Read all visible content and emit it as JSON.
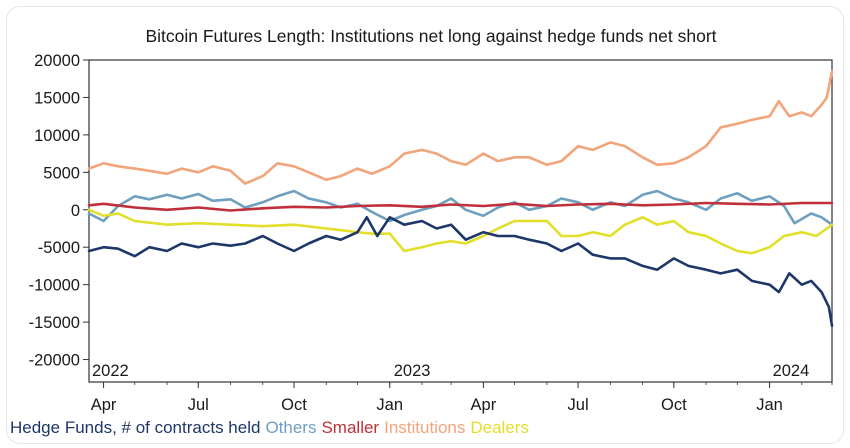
{
  "chart_data": {
    "type": "line",
    "title": "Bitcoin Futures Length: Institutions net long against hedge funds net short",
    "x_month_ticks": [
      "Apr",
      "Jul",
      "Oct",
      "Jan",
      "Apr",
      "Jul",
      "Oct",
      "Jan"
    ],
    "x_year_labels": [
      "2022",
      "2023",
      "2024"
    ],
    "x_range": [
      "2022-03-18",
      "2024-03-01"
    ],
    "y_ticks": [
      20000,
      15000,
      10000,
      5000,
      0,
      -5000,
      -10000,
      -15000,
      -20000
    ],
    "ylim": [
      -23000,
      20000
    ],
    "grid": false,
    "legend_position": "bottom",
    "legend_prefix": "Hedge Funds, # of contracts held",
    "series": [
      {
        "name": "Others",
        "color": "#6f9fbf",
        "points": [
          [
            "2022-03-18",
            -500
          ],
          [
            "2022-04-01",
            -1500
          ],
          [
            "2022-04-15",
            500
          ],
          [
            "2022-05-01",
            1800
          ],
          [
            "2022-05-15",
            1400
          ],
          [
            "2022-06-01",
            2000
          ],
          [
            "2022-06-15",
            1500
          ],
          [
            "2022-07-01",
            2100
          ],
          [
            "2022-07-15",
            1200
          ],
          [
            "2022-08-01",
            1400
          ],
          [
            "2022-08-15",
            300
          ],
          [
            "2022-09-01",
            1000
          ],
          [
            "2022-09-15",
            1800
          ],
          [
            "2022-10-01",
            2500
          ],
          [
            "2022-10-15",
            1500
          ],
          [
            "2022-11-01",
            1000
          ],
          [
            "2022-11-15",
            300
          ],
          [
            "2022-12-01",
            800
          ],
          [
            "2022-12-15",
            -300
          ],
          [
            "2023-01-01",
            -1500
          ],
          [
            "2023-01-15",
            -700
          ],
          [
            "2023-02-01",
            0
          ],
          [
            "2023-02-15",
            500
          ],
          [
            "2023-03-01",
            1500
          ],
          [
            "2023-03-15",
            0
          ],
          [
            "2023-04-01",
            -800
          ],
          [
            "2023-04-15",
            300
          ],
          [
            "2023-05-01",
            1000
          ],
          [
            "2023-05-15",
            0
          ],
          [
            "2023-06-01",
            500
          ],
          [
            "2023-06-15",
            1500
          ],
          [
            "2023-07-01",
            1000
          ],
          [
            "2023-07-15",
            0
          ],
          [
            "2023-08-01",
            1000
          ],
          [
            "2023-08-15",
            500
          ],
          [
            "2023-09-01",
            2000
          ],
          [
            "2023-09-15",
            2500
          ],
          [
            "2023-10-01",
            1500
          ],
          [
            "2023-10-15",
            1000
          ],
          [
            "2023-11-01",
            0
          ],
          [
            "2023-11-15",
            1500
          ],
          [
            "2023-12-01",
            2200
          ],
          [
            "2023-12-15",
            1200
          ],
          [
            "2024-01-01",
            1800
          ],
          [
            "2024-01-15",
            500
          ],
          [
            "2024-01-25",
            -1800
          ],
          [
            "2024-02-10",
            -500
          ],
          [
            "2024-02-20",
            -1000
          ],
          [
            "2024-03-01",
            -2000
          ]
        ]
      },
      {
        "name": "Smaller",
        "color": "#c0303a",
        "points": [
          [
            "2022-03-18",
            600
          ],
          [
            "2022-04-01",
            800
          ],
          [
            "2022-05-01",
            300
          ],
          [
            "2022-06-01",
            0
          ],
          [
            "2022-07-01",
            300
          ],
          [
            "2022-08-01",
            -100
          ],
          [
            "2022-09-01",
            200
          ],
          [
            "2022-10-01",
            400
          ],
          [
            "2022-11-01",
            300
          ],
          [
            "2022-12-01",
            500
          ],
          [
            "2023-01-01",
            600
          ],
          [
            "2023-02-01",
            400
          ],
          [
            "2023-03-01",
            700
          ],
          [
            "2023-04-01",
            500
          ],
          [
            "2023-05-01",
            800
          ],
          [
            "2023-06-01",
            500
          ],
          [
            "2023-07-01",
            700
          ],
          [
            "2023-08-01",
            800
          ],
          [
            "2023-09-01",
            600
          ],
          [
            "2023-10-01",
            700
          ],
          [
            "2023-11-01",
            900
          ],
          [
            "2023-12-01",
            800
          ],
          [
            "2024-01-01",
            700
          ],
          [
            "2024-02-01",
            900
          ],
          [
            "2024-03-01",
            900
          ]
        ]
      },
      {
        "name": "Institutions",
        "color": "#f2a47a",
        "points": [
          [
            "2022-03-18",
            5500
          ],
          [
            "2022-04-01",
            6200
          ],
          [
            "2022-04-15",
            5800
          ],
          [
            "2022-05-01",
            5500
          ],
          [
            "2022-05-15",
            5200
          ],
          [
            "2022-06-01",
            4800
          ],
          [
            "2022-06-15",
            5500
          ],
          [
            "2022-07-01",
            5000
          ],
          [
            "2022-07-15",
            5800
          ],
          [
            "2022-08-01",
            5200
          ],
          [
            "2022-08-15",
            3500
          ],
          [
            "2022-09-01",
            4500
          ],
          [
            "2022-09-15",
            6200
          ],
          [
            "2022-10-01",
            5800
          ],
          [
            "2022-10-15",
            5000
          ],
          [
            "2022-11-01",
            4000
          ],
          [
            "2022-11-15",
            4500
          ],
          [
            "2022-12-01",
            5500
          ],
          [
            "2022-12-15",
            4800
          ],
          [
            "2023-01-01",
            5800
          ],
          [
            "2023-01-15",
            7500
          ],
          [
            "2023-02-01",
            8000
          ],
          [
            "2023-02-15",
            7500
          ],
          [
            "2023-03-01",
            6500
          ],
          [
            "2023-03-15",
            6000
          ],
          [
            "2023-04-01",
            7500
          ],
          [
            "2023-04-15",
            6500
          ],
          [
            "2023-05-01",
            7000
          ],
          [
            "2023-05-15",
            7000
          ],
          [
            "2023-06-01",
            6000
          ],
          [
            "2023-06-15",
            6500
          ],
          [
            "2023-07-01",
            8500
          ],
          [
            "2023-07-15",
            8000
          ],
          [
            "2023-08-01",
            9000
          ],
          [
            "2023-08-15",
            8500
          ],
          [
            "2023-09-01",
            7000
          ],
          [
            "2023-09-15",
            6000
          ],
          [
            "2023-10-01",
            6200
          ],
          [
            "2023-10-15",
            7000
          ],
          [
            "2023-11-01",
            8500
          ],
          [
            "2023-11-15",
            11000
          ],
          [
            "2023-12-01",
            11500
          ],
          [
            "2023-12-15",
            12000
          ],
          [
            "2024-01-01",
            12500
          ],
          [
            "2024-01-10",
            14500
          ],
          [
            "2024-01-20",
            12500
          ],
          [
            "2024-02-01",
            13000
          ],
          [
            "2024-02-10",
            12500
          ],
          [
            "2024-02-20",
            14000
          ],
          [
            "2024-02-25",
            15000
          ],
          [
            "2024-03-01",
            18500
          ]
        ]
      },
      {
        "name": "Dealers",
        "color": "#e2df2a",
        "points": [
          [
            "2022-03-18",
            0
          ],
          [
            "2022-04-01",
            -800
          ],
          [
            "2022-04-15",
            -500
          ],
          [
            "2022-05-01",
            -1500
          ],
          [
            "2022-06-01",
            -2000
          ],
          [
            "2022-07-01",
            -1800
          ],
          [
            "2022-08-01",
            -2000
          ],
          [
            "2022-09-01",
            -2200
          ],
          [
            "2022-10-01",
            -2000
          ],
          [
            "2022-11-01",
            -2500
          ],
          [
            "2022-12-01",
            -3000
          ],
          [
            "2022-12-15",
            -3200
          ],
          [
            "2023-01-01",
            -3200
          ],
          [
            "2023-01-15",
            -5500
          ],
          [
            "2023-02-01",
            -5000
          ],
          [
            "2023-02-15",
            -4500
          ],
          [
            "2023-03-01",
            -4200
          ],
          [
            "2023-03-15",
            -4500
          ],
          [
            "2023-04-01",
            -3500
          ],
          [
            "2023-04-15",
            -2500
          ],
          [
            "2023-05-01",
            -1500
          ],
          [
            "2023-06-01",
            -1500
          ],
          [
            "2023-06-15",
            -3500
          ],
          [
            "2023-07-01",
            -3500
          ],
          [
            "2023-07-15",
            -3000
          ],
          [
            "2023-08-01",
            -3500
          ],
          [
            "2023-08-15",
            -2000
          ],
          [
            "2023-09-01",
            -1000
          ],
          [
            "2023-09-15",
            -2000
          ],
          [
            "2023-10-01",
            -1500
          ],
          [
            "2023-10-15",
            -3000
          ],
          [
            "2023-11-01",
            -3500
          ],
          [
            "2023-11-15",
            -4500
          ],
          [
            "2023-12-01",
            -5500
          ],
          [
            "2023-12-15",
            -5800
          ],
          [
            "2024-01-01",
            -5000
          ],
          [
            "2024-01-15",
            -3500
          ],
          [
            "2024-02-01",
            -3000
          ],
          [
            "2024-02-15",
            -3500
          ],
          [
            "2024-03-01",
            -2000
          ]
        ]
      },
      {
        "name": "Hedge Funds",
        "color": "#1d3768",
        "points": [
          [
            "2022-03-18",
            -5500
          ],
          [
            "2022-04-01",
            -5000
          ],
          [
            "2022-04-15",
            -5200
          ],
          [
            "2022-05-01",
            -6200
          ],
          [
            "2022-05-15",
            -5000
          ],
          [
            "2022-06-01",
            -5500
          ],
          [
            "2022-06-15",
            -4500
          ],
          [
            "2022-07-01",
            -5000
          ],
          [
            "2022-07-15",
            -4500
          ],
          [
            "2022-08-01",
            -4800
          ],
          [
            "2022-08-15",
            -4500
          ],
          [
            "2022-09-01",
            -3500
          ],
          [
            "2022-09-15",
            -4500
          ],
          [
            "2022-10-01",
            -5500
          ],
          [
            "2022-10-15",
            -4500
          ],
          [
            "2022-11-01",
            -3500
          ],
          [
            "2022-11-15",
            -4000
          ],
          [
            "2022-12-01",
            -3000
          ],
          [
            "2022-12-10",
            -1000
          ],
          [
            "2022-12-20",
            -3500
          ],
          [
            "2023-01-01",
            -1000
          ],
          [
            "2023-01-15",
            -2000
          ],
          [
            "2023-02-01",
            -1500
          ],
          [
            "2023-02-15",
            -2500
          ],
          [
            "2023-03-01",
            -2000
          ],
          [
            "2023-03-15",
            -4000
          ],
          [
            "2023-04-01",
            -3000
          ],
          [
            "2023-04-15",
            -3500
          ],
          [
            "2023-05-01",
            -3500
          ],
          [
            "2023-05-15",
            -4000
          ],
          [
            "2023-06-01",
            -4500
          ],
          [
            "2023-06-15",
            -5500
          ],
          [
            "2023-07-01",
            -4500
          ],
          [
            "2023-07-15",
            -6000
          ],
          [
            "2023-08-01",
            -6500
          ],
          [
            "2023-08-15",
            -6500
          ],
          [
            "2023-09-01",
            -7500
          ],
          [
            "2023-09-15",
            -8000
          ],
          [
            "2023-10-01",
            -6500
          ],
          [
            "2023-10-15",
            -7500
          ],
          [
            "2023-11-01",
            -8000
          ],
          [
            "2023-11-15",
            -8500
          ],
          [
            "2023-12-01",
            -8000
          ],
          [
            "2023-12-15",
            -9500
          ],
          [
            "2024-01-01",
            -10000
          ],
          [
            "2024-01-10",
            -11000
          ],
          [
            "2024-01-20",
            -8500
          ],
          [
            "2024-02-01",
            -10000
          ],
          [
            "2024-02-10",
            -9500
          ],
          [
            "2024-02-20",
            -11000
          ],
          [
            "2024-02-27",
            -13000
          ],
          [
            "2024-03-01",
            -15500
          ]
        ]
      }
    ]
  }
}
